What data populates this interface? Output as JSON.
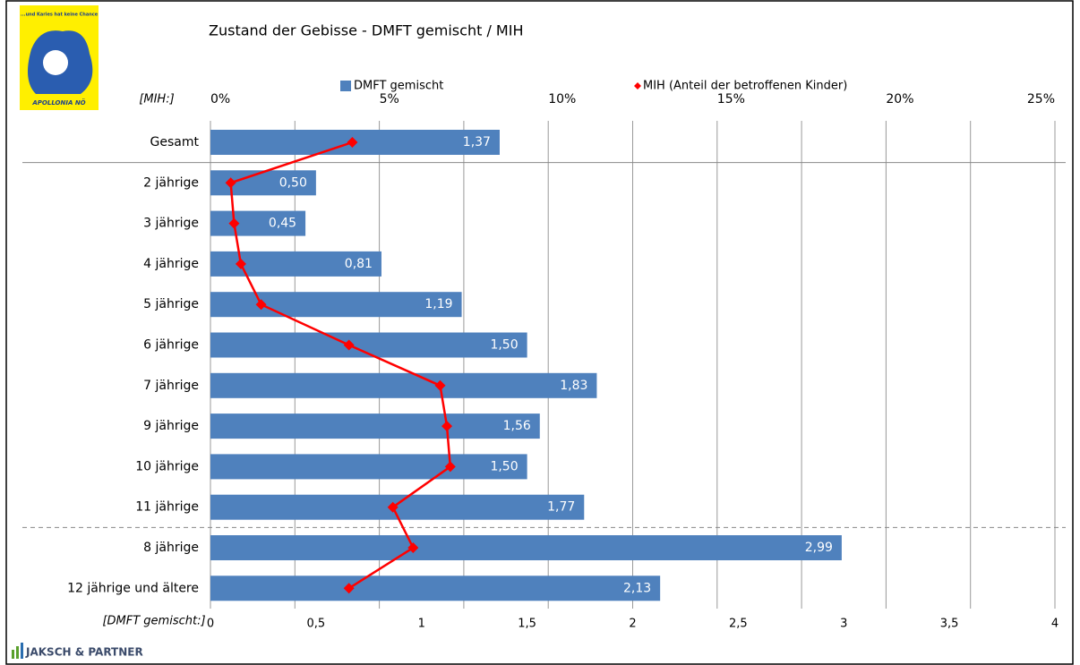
{
  "chart_data": {
    "type": "bar",
    "orientation": "horizontal",
    "title": "Zustand der Gebisse - DMFT gemischt / MIH",
    "categories": [
      "Gesamt",
      "2 jährige",
      "3 jährige",
      "4 jährige",
      "5 jährige",
      "6 jährige",
      "7 jährige",
      "9 jährige",
      "10 jährige",
      "11 jährige",
      "8 jährige",
      "12 jährige und ältere"
    ],
    "series": [
      {
        "name": "DMFT gemischt",
        "color": "#4f81bd",
        "type": "bar",
        "values": [
          1.37,
          0.5,
          0.45,
          0.81,
          1.19,
          1.5,
          1.83,
          1.56,
          1.5,
          1.77,
          2.99,
          2.13
        ],
        "value_labels": [
          "1,37",
          "0,50",
          "0,45",
          "0,81",
          "1,19",
          "1,50",
          "1,83",
          "1,56",
          "1,50",
          "1,77",
          "2,99",
          "2,13"
        ]
      },
      {
        "name": "MIH (Anteil der betroffenen Kinder)",
        "color": "#ff0000",
        "type": "line",
        "axis": "x2",
        "values": [
          4.2,
          0.6,
          0.7,
          0.9,
          1.5,
          4.1,
          6.8,
          7.0,
          7.1,
          5.4,
          6.0,
          4.1
        ]
      }
    ],
    "xlabel": "[DMFT gemischt:]",
    "x2label": "[MIH:]",
    "xlim": [
      0,
      4
    ],
    "xticks": [
      0,
      {
        "value": 0.5,
        "label": "0,5"
      },
      1,
      {
        "value": 1.5,
        "label": "1,5"
      },
      2,
      {
        "value": 2.5,
        "label": "2,5"
      },
      3,
      {
        "value": 3.5,
        "label": "3,5"
      },
      4
    ],
    "x2lim": [
      0,
      25
    ],
    "x2ticks": [
      {
        "value": 0,
        "label": "0%"
      },
      {
        "value": 5,
        "label": "5%"
      },
      {
        "value": 10,
        "label": "10%"
      },
      {
        "value": 15,
        "label": "15%"
      },
      {
        "value": 20,
        "label": "20%"
      },
      {
        "value": 25,
        "label": "25%"
      }
    ],
    "grid": true,
    "logo": {
      "tagline": "...und Karies hat keine Chance",
      "name": "APOLLONIA NÖ"
    },
    "footer": "JAKSCH & PARTNER"
  }
}
